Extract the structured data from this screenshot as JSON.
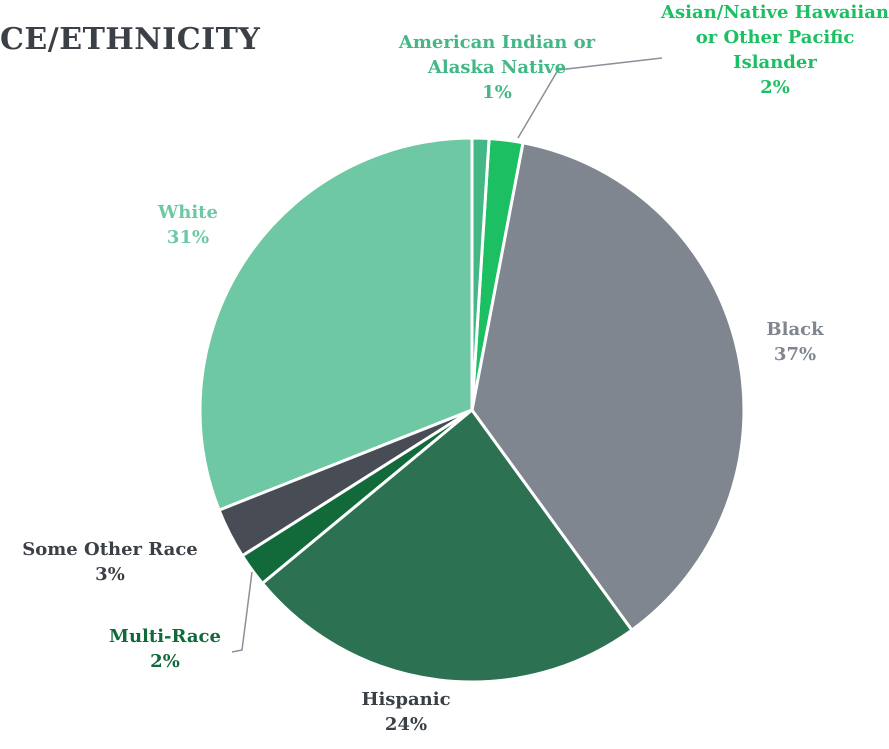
{
  "chart_data": {
    "type": "pie",
    "title": "CE/ETHNICITY",
    "categories": [
      "American Indian or Alaska Native",
      "Asian/Native Hawaiian or Other Pacific Islander",
      "Black",
      "Hispanic",
      "Multi-Race",
      "Some Other Race",
      "White"
    ],
    "values": [
      1,
      2,
      37,
      24,
      2,
      3,
      31
    ],
    "value_labels": [
      "1%",
      "2%",
      "37%",
      "24%",
      "2%",
      "3%",
      "31%"
    ],
    "colors": [
      "#43b886",
      "#1dbf63",
      "#7f868f",
      "#2b7152",
      "#12693a",
      "#474c55",
      "#6dc8a3"
    ],
    "label_colors": [
      "#43b886",
      "#1dbf63",
      "#7f868f",
      "#3b4047",
      "#12693a",
      "#3b4047",
      "#6dc8a3"
    ]
  }
}
